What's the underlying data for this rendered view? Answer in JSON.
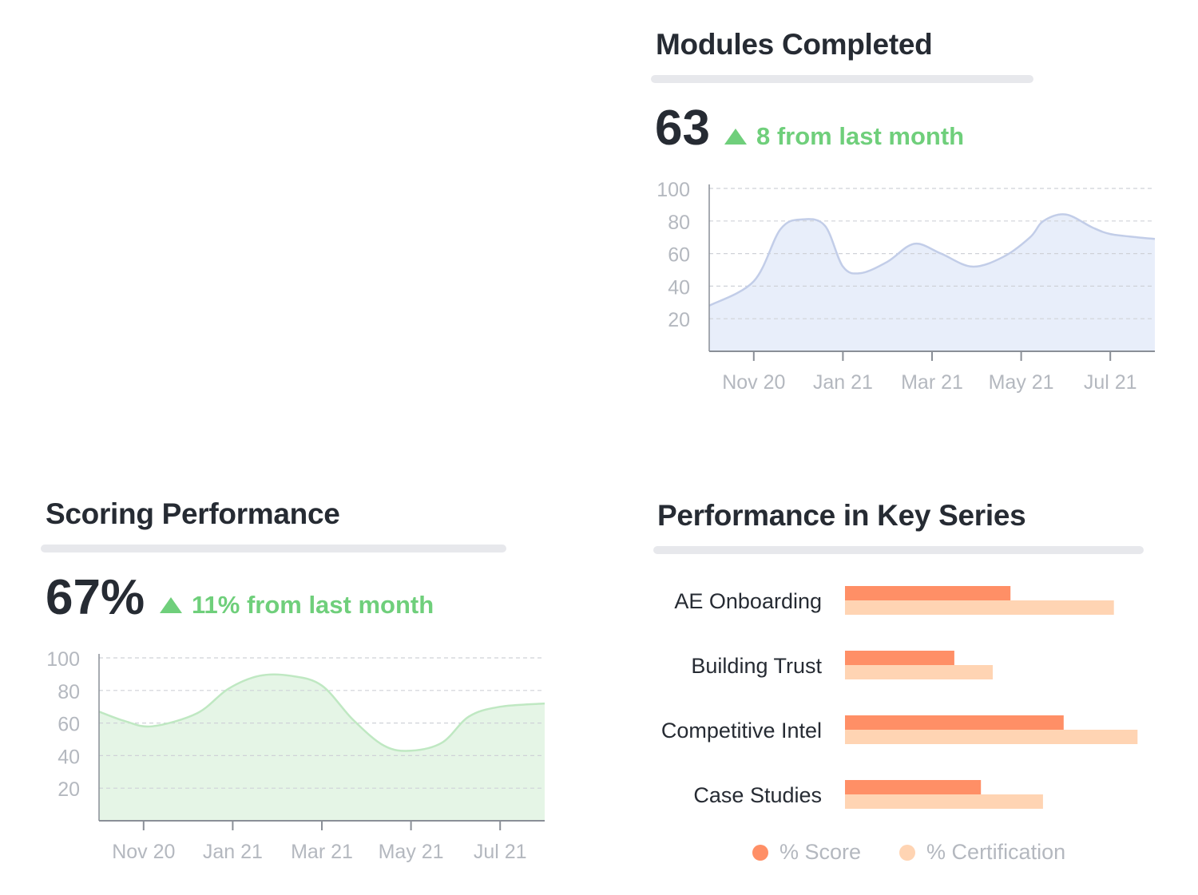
{
  "colors": {
    "title": "#262b33",
    "positive": "#6fcf7b",
    "axis_text": "#b4b8bf",
    "modules_fill": "#e8eefa",
    "modules_line": "#c2cde8",
    "scoring_fill": "#e5f5e6",
    "scoring_line": "#bfe8c2",
    "score_bar": "#ff8f66",
    "cert_bar": "#ffd4b3"
  },
  "modules": {
    "title": "Modules Completed",
    "value": "63",
    "delta": "8 from last month",
    "up_icon": "triangle-up-icon"
  },
  "scoring": {
    "title": "Scoring Performance",
    "value": "67%",
    "delta": "11% from last month",
    "up_icon": "triangle-up-icon"
  },
  "series": {
    "title": "Performance in Key Series"
  },
  "chart_data": [
    {
      "id": "modules",
      "type": "area",
      "title": "Modules Completed",
      "xlabel": "",
      "ylabel": "",
      "ylim": [
        0,
        100
      ],
      "yticks": [
        20,
        40,
        60,
        80,
        100
      ],
      "xlim": [
        0,
        10
      ],
      "xticks": [
        {
          "x": 1,
          "label": "Nov 20"
        },
        {
          "x": 3,
          "label": "Jan 21"
        },
        {
          "x": 5,
          "label": "Mar 21"
        },
        {
          "x": 7,
          "label": "May 21"
        },
        {
          "x": 9,
          "label": "Jul 21"
        }
      ],
      "x": [
        0,
        1,
        1.6,
        2.1,
        2.6,
        3,
        3.4,
        4,
        4.6,
        5.2,
        5.9,
        6.6,
        7.2,
        7.5,
        8,
        8.6,
        9,
        9.6,
        10
      ],
      "values": [
        28,
        43,
        75,
        81,
        77,
        52,
        48,
        55,
        66,
        60,
        52,
        58,
        70,
        80,
        84,
        76,
        72,
        70,
        69
      ],
      "grid": true
    },
    {
      "id": "scoring",
      "type": "area",
      "title": "Scoring Performance",
      "xlabel": "",
      "ylabel": "",
      "ylim": [
        0,
        100
      ],
      "yticks": [
        20,
        40,
        60,
        80,
        100
      ],
      "xlim": [
        0,
        10
      ],
      "xticks": [
        {
          "x": 1,
          "label": "Nov 20"
        },
        {
          "x": 3,
          "label": "Jan 21"
        },
        {
          "x": 5,
          "label": "Mar 21"
        },
        {
          "x": 7,
          "label": "May 21"
        },
        {
          "x": 9,
          "label": "Jul 21"
        }
      ],
      "x": [
        0,
        0.6,
        1.2,
        2.2,
        2.9,
        3.6,
        4.3,
        5,
        5.7,
        6.4,
        7,
        7.7,
        8.3,
        9,
        10
      ],
      "values": [
        67,
        61,
        58,
        66,
        81,
        89,
        89,
        83,
        62,
        46,
        43,
        48,
        64,
        70,
        72
      ],
      "grid": true
    },
    {
      "id": "key_series",
      "type": "bar",
      "orientation": "horizontal",
      "title": "Performance in Key Series",
      "categories": [
        "AE Onboarding",
        "Building Trust",
        "Competitive Intel",
        "Case Studies"
      ],
      "xlim": [
        0,
        100
      ],
      "series": [
        {
          "name": "% Score",
          "values": [
            56,
            37,
            74,
            46
          ]
        },
        {
          "name": "% Certification",
          "values": [
            91,
            50,
            99,
            67
          ]
        }
      ],
      "legend": "bottom"
    }
  ]
}
